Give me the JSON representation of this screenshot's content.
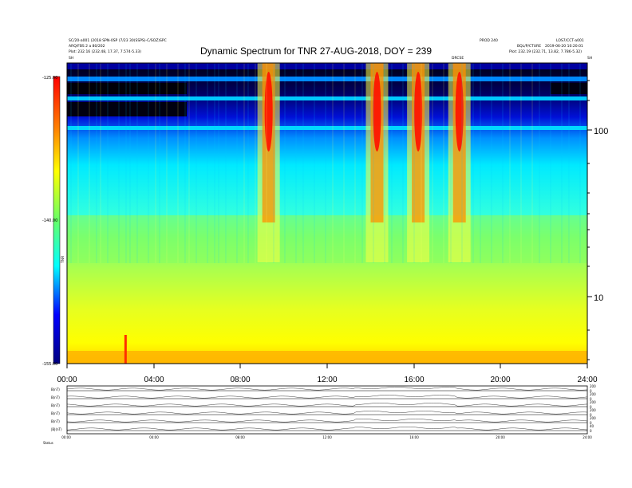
{
  "header": {
    "title": "Dynamic Spectrum for TNR 27-AUG-2018, DOY = 239",
    "left_lines": [
      "SC/20-a001 (2018 SPN-0SP (7/23 30(SSPS)-C/SOZ)SPC",
      "ARQ/FBS 2 a 80/202",
      "Plot:    232.16 (232.48, 17.37, 7.574-5.33)"
    ],
    "right_col1": [
      "PROD 240",
      "BQL/P/CTURE"
    ],
    "right_col2": [
      "LOS7/CCT-a001",
      "2019-06-20 10:20:01"
    ],
    "right_plot": "Plot:    232.19 (232.71, 13.82, 7.786-5.32)",
    "marker_left": "SH",
    "marker_mid": "DRCSE",
    "marker_right": "SH"
  },
  "colorbar": {
    "label": "TNR",
    "ticks": [
      "-125.00",
      "-140.00",
      "-155.00"
    ]
  },
  "chart_data": [
    {
      "type": "heatmap",
      "title": "Dynamic Spectrum for TNR 27-AUG-2018, DOY = 239",
      "x_ticks": [
        "00:00",
        "04:00",
        "08:00",
        "12:00",
        "16:00",
        "20:00",
        "24:00"
      ],
      "x_range_hours": [
        0,
        24
      ],
      "y_scale": "log",
      "y_ticks": [
        "100",
        "10"
      ],
      "y_range": [
        4,
        250
      ],
      "color_range": [
        -155,
        -125
      ],
      "colormap": [
        "#00007f",
        "#0000ff",
        "#00ffff",
        "#66ff66",
        "#ffff00",
        "#ff7f00",
        "#ff0000",
        "#7f0000"
      ],
      "bright_events": [
        {
          "center_hours": 9.3,
          "level": "red"
        },
        {
          "center_hours": 14.3,
          "level": "red"
        },
        {
          "center_hours": 16.2,
          "level": "red"
        },
        {
          "center_hours": 18.1,
          "level": "red"
        },
        {
          "center_hours": 2.7,
          "level": "red"
        }
      ]
    },
    {
      "type": "line",
      "panels": [
        {
          "label": "B(nT)",
          "right_ticks": [
            "200",
            "0"
          ]
        },
        {
          "label": "B(nT)",
          "right_ticks": [
            "200",
            "0"
          ]
        },
        {
          "label": "B(nT)",
          "right_ticks": [
            "200",
            "0"
          ]
        },
        {
          "label": "B(nT)",
          "right_ticks": [
            "200",
            "0"
          ]
        },
        {
          "label": "B(nT)",
          "right_ticks": [
            "200",
            "0"
          ]
        },
        {
          "label": "|B|(nT)",
          "right_ticks": [
            "40",
            "0"
          ]
        }
      ],
      "x_ticks": [
        "00:00",
        "04:00",
        "08:00",
        "12:00",
        "16:00",
        "20:00",
        "24:00"
      ],
      "footer_label": "Status"
    }
  ]
}
